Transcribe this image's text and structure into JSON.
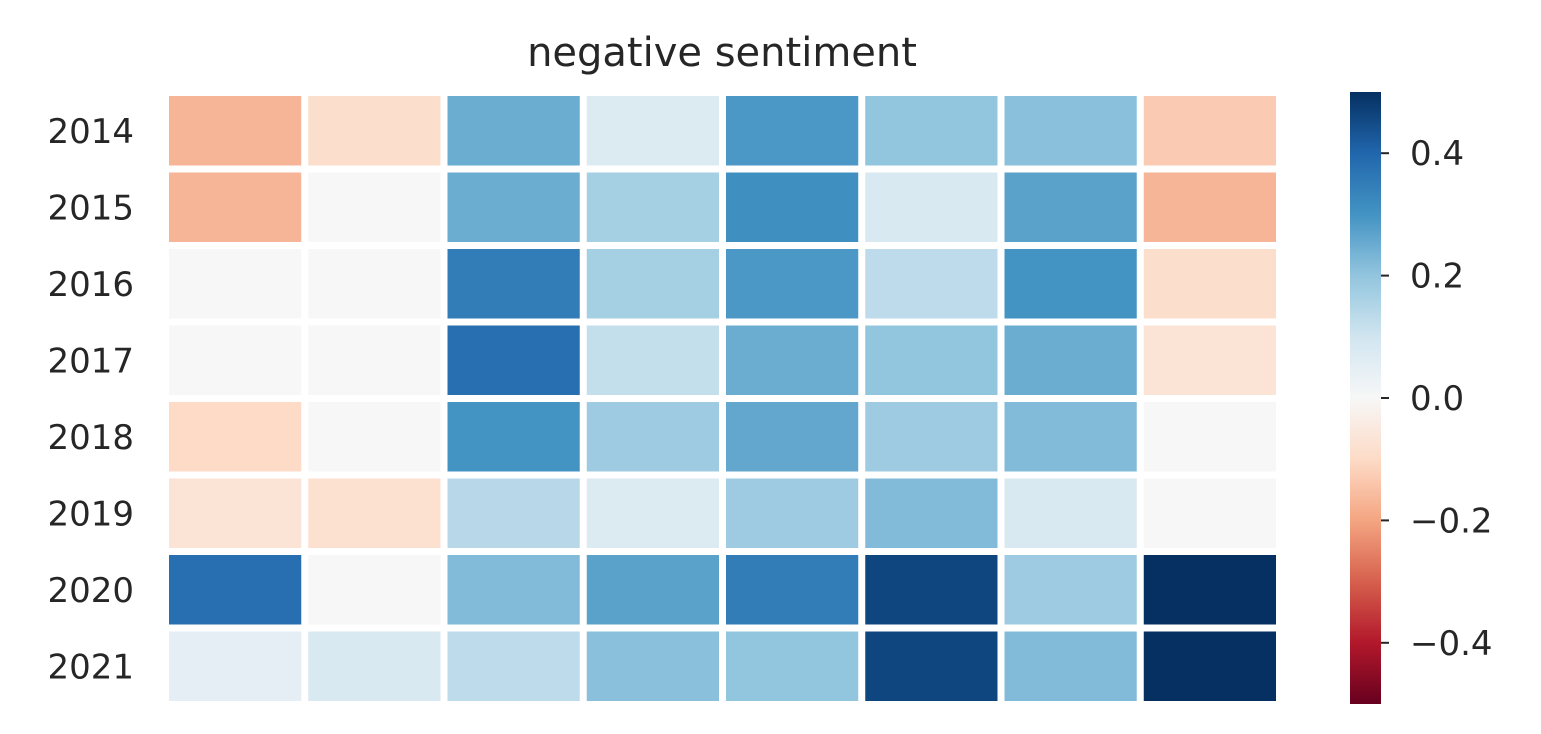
{
  "chart_data": {
    "type": "heatmap",
    "title": "negative sentiment",
    "colormap": "RdBu",
    "rows": [
      "2014",
      "2015",
      "2016",
      "2017",
      "2018",
      "2019",
      "2020",
      "2021"
    ],
    "columns": [
      "",
      "",
      "",
      "",
      "",
      "",
      "",
      ""
    ],
    "values": [
      [
        -0.17,
        -0.09,
        0.25,
        0.07,
        0.29,
        0.2,
        0.21,
        -0.13
      ],
      [
        -0.17,
        0.0,
        0.25,
        0.17,
        0.31,
        0.08,
        0.27,
        -0.17
      ],
      [
        0.0,
        0.0,
        0.35,
        0.17,
        0.29,
        0.13,
        0.3,
        -0.09
      ],
      [
        0.0,
        0.0,
        0.38,
        0.12,
        0.25,
        0.2,
        0.25,
        -0.07
      ],
      [
        -0.1,
        0.0,
        0.3,
        0.18,
        0.26,
        0.18,
        0.22,
        0.0
      ],
      [
        -0.07,
        -0.08,
        0.14,
        0.07,
        0.18,
        0.22,
        0.08,
        0.0
      ],
      [
        0.38,
        0.0,
        0.22,
        0.27,
        0.35,
        0.46,
        0.18,
        0.5
      ],
      [
        0.05,
        0.08,
        0.13,
        0.21,
        0.2,
        0.46,
        0.22,
        0.5
      ]
    ],
    "colorbar": {
      "range": [
        -0.5,
        0.5
      ],
      "ticks": [
        0.4,
        0.2,
        0.0,
        -0.2,
        -0.4
      ],
      "tick_labels": [
        "0.4",
        "0.2",
        "0.0",
        "−0.2",
        "−0.4"
      ]
    },
    "grid": false,
    "legend": "colorbar-right"
  }
}
